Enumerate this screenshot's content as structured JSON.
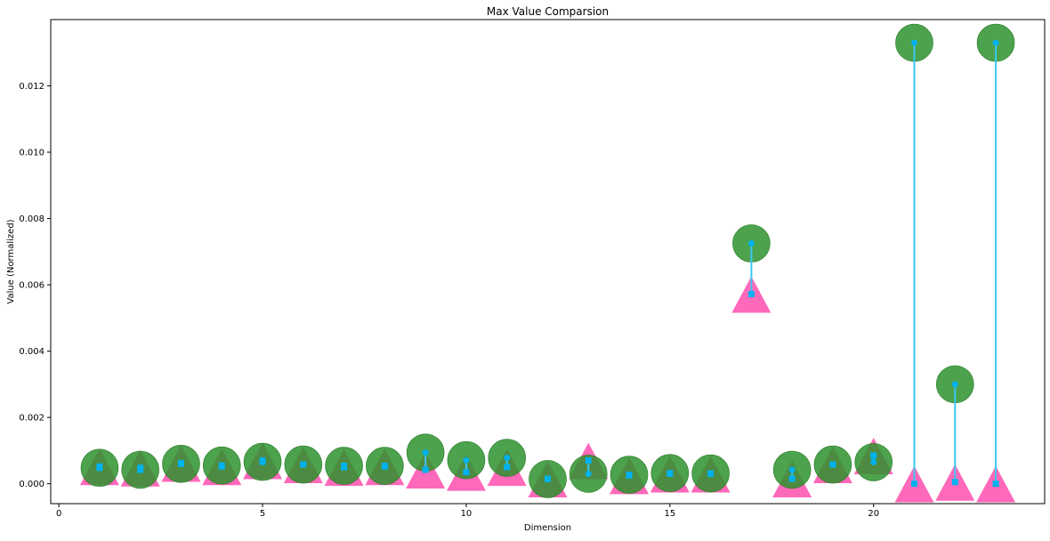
{
  "chart_data": {
    "type": "scatter",
    "title": "Max Value Comparsion",
    "xlabel": "Dimension",
    "ylabel": "Value (Normalized)",
    "xlim": [
      -0.2,
      24.2
    ],
    "ylim": [
      -0.0006,
      0.014
    ],
    "xticks": [
      0,
      5,
      10,
      15,
      20
    ],
    "yticks": [
      0.0,
      0.002,
      0.004,
      0.006,
      0.008,
      0.01,
      0.012
    ],
    "ytick_labels": [
      "0.000",
      "0.002",
      "0.004",
      "0.006",
      "0.008",
      "0.010",
      "0.012"
    ],
    "grid": false,
    "legend": "none",
    "colors": {
      "circle": "#2e922e",
      "triangle": "#ff4fae",
      "connector": "#3ac8ef",
      "marker": "#00b2ef"
    },
    "x": [
      1,
      2,
      3,
      4,
      5,
      6,
      7,
      8,
      9,
      10,
      11,
      12,
      13,
      14,
      15,
      16,
      17,
      18,
      19,
      20,
      21,
      22,
      23
    ],
    "series": [
      {
        "marker": "circle",
        "values": [
          0.00048,
          0.00042,
          0.0006,
          0.00055,
          0.00066,
          0.00058,
          0.00054,
          0.00054,
          0.00094,
          0.00071,
          0.00078,
          0.00014,
          0.0003,
          0.00027,
          0.00032,
          0.00031,
          0.00725,
          0.00042,
          0.00058,
          0.00065,
          0.0133,
          0.003,
          0.0133
        ]
      },
      {
        "marker": "triangle",
        "values": [
          0.00052,
          0.00048,
          0.00062,
          0.00052,
          0.0007,
          0.00058,
          0.0005,
          0.00052,
          0.00042,
          0.00035,
          0.0005,
          0.00015,
          0.0007,
          0.00025,
          0.0003,
          0.0003,
          0.00572,
          0.00015,
          0.00058,
          0.00085,
          0.0,
          5e-05,
          0.0
        ]
      }
    ]
  }
}
